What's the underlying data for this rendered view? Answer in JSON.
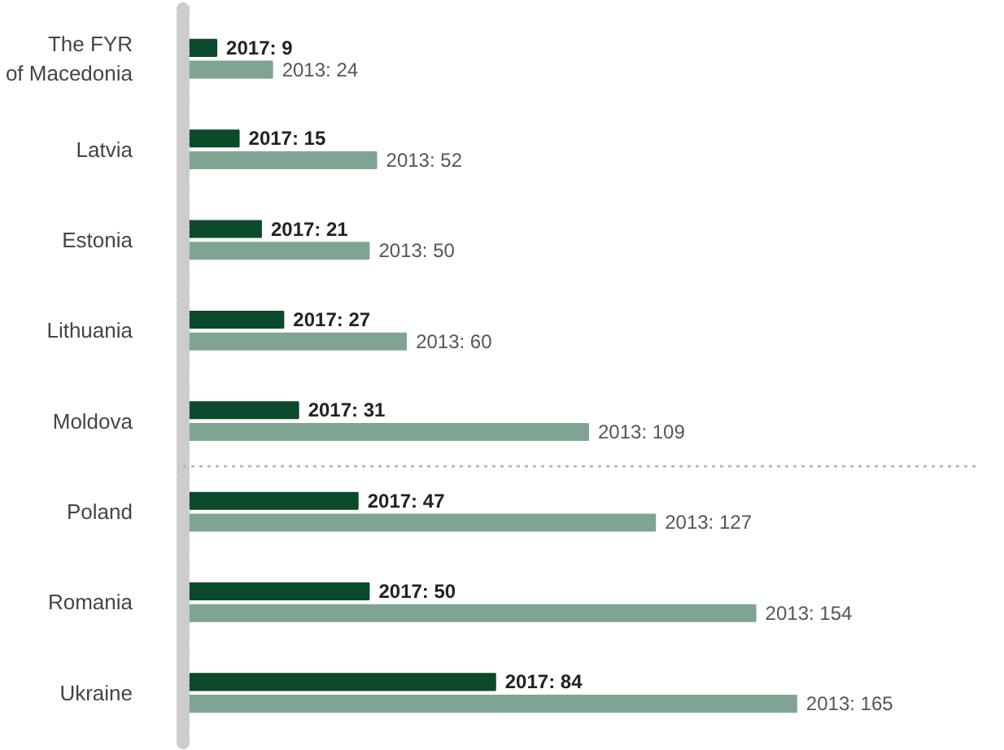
{
  "chart_data": {
    "type": "bar",
    "orientation": "horizontal",
    "categories": [
      "The FYR\nof Macedonia",
      "Latvia",
      "Estonia",
      "Lithuania",
      "Moldova",
      "Poland",
      "Romania",
      "Ukraine"
    ],
    "series": [
      {
        "color": "#0b4a2b",
        "values": [
          9,
          15,
          21,
          27,
          31,
          47,
          50,
          84
        ],
        "value_labels": [
          "2017: 9",
          "2017: 15",
          "2017: 21",
          "2017: 27",
          "2017: 31",
          "2017: 47",
          "2017: 50",
          "2017: 84"
        ]
      },
      {
        "color": "#7fa592",
        "values": [
          24,
          52,
          50,
          60,
          109,
          127,
          154,
          165
        ],
        "value_labels": [
          "2013: 24",
          "2013: 52",
          "2013: 50",
          "2013: 60",
          "2013: 109",
          "2013: 127",
          "2013: 154",
          "2013: 165"
        ]
      }
    ],
    "grid": false
  }
}
